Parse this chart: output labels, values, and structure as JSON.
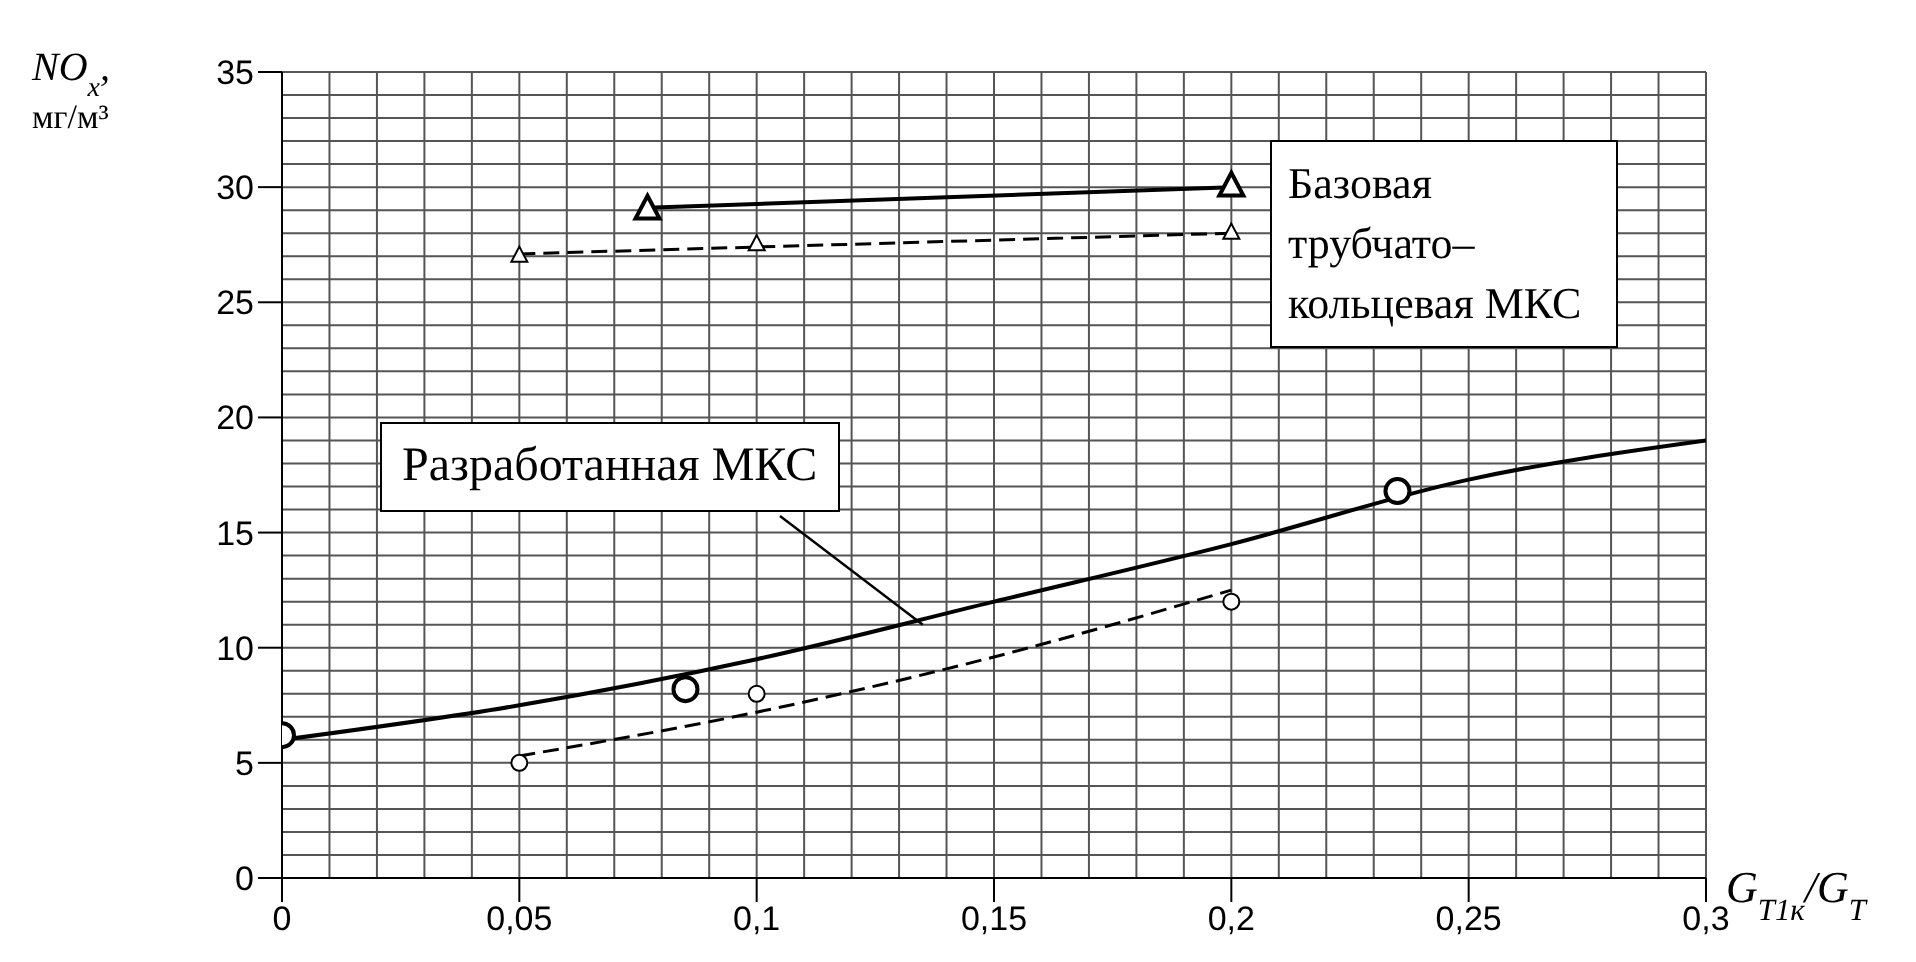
{
  "chart_data": {
    "type": "line",
    "xlabel": "G$_{T1к}$/G$_{T}$",
    "ylabel": "NO$_{x}$, мг/м³",
    "xlim": [
      0,
      0.3
    ],
    "xticks": [
      {
        "value": 0,
        "label": "0"
      },
      {
        "value": 0.05,
        "label": "0,05"
      },
      {
        "value": 0.1,
        "label": "0,1"
      },
      {
        "value": 0.15,
        "label": "0,15"
      },
      {
        "value": 0.2,
        "label": "0,2"
      },
      {
        "value": 0.25,
        "label": "0,25"
      },
      {
        "value": 0.3,
        "label": "0,3"
      }
    ],
    "ylim": [
      0,
      35
    ],
    "yticks": [
      0,
      5,
      10,
      15,
      20,
      25,
      30,
      35
    ],
    "grid": true,
    "series": [
      {
        "type": "scatter",
        "color": "#000000",
        "marker": "triangle",
        "x": [
          0.077,
          0.2
        ],
        "values": [
          29,
          30
        ]
      },
      {
        "color": "#000000",
        "marker": "none",
        "line_style": "solid",
        "x": [
          0.077,
          0.2
        ],
        "values": [
          29.1,
          30
        ]
      },
      {
        "type": "scatter",
        "color": "#000000",
        "marker": "triangle",
        "x": [
          0.05,
          0.1,
          0.2
        ],
        "values": [
          27,
          27.5,
          28
        ]
      },
      {
        "color": "#000000",
        "marker": "none",
        "line_style": "dashed",
        "x": [
          0.05,
          0.1,
          0.15,
          0.2
        ],
        "values": [
          27.1,
          27.4,
          27.7,
          28
        ]
      },
      {
        "type": "scatter",
        "color": "#000000",
        "marker": "circle",
        "x": [
          0,
          0.085,
          0.235
        ],
        "values": [
          6.2,
          8.2,
          16.8
        ]
      },
      {
        "color": "#000000",
        "marker": "none",
        "line_style": "solid",
        "x": [
          0,
          0.05,
          0.1,
          0.15,
          0.2,
          0.25,
          0.3
        ],
        "values": [
          6,
          7.5,
          9.5,
          12,
          14.5,
          17.3,
          19
        ]
      },
      {
        "type": "scatter",
        "color": "#000000",
        "marker": "circle",
        "x": [
          0.05,
          0.1,
          0.2
        ],
        "values": [
          5,
          8,
          12
        ]
      },
      {
        "color": "#000000",
        "marker": "none",
        "line_style": "dashed",
        "x": [
          0.05,
          0.1,
          0.15,
          0.2
        ],
        "values": [
          5.3,
          7.2,
          9.6,
          12.5
        ]
      }
    ],
    "annotations": [
      "Базовая трубчато–кольцевая МКС",
      {
        "text": "Разработанная МКС",
        "x": 0.135,
        "y": 11
      }
    ]
  }
}
